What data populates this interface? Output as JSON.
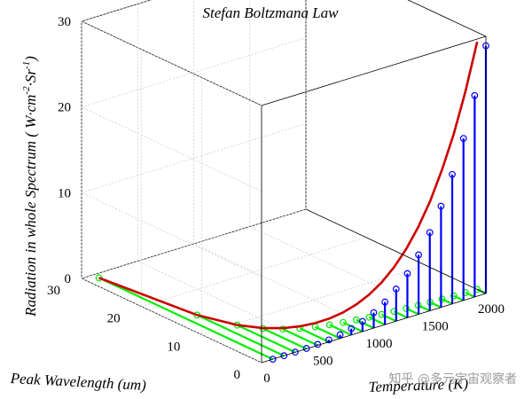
{
  "chart_data": {
    "type": "3d-stem",
    "title": "Stefan Boltzmana Law",
    "xlabel": "Temperature (K)",
    "ylabel": "Peak Wavelength (um)",
    "zlabel_parts": {
      "main": "Radiation in whole Spectrum ( W·cm",
      "sup1": "-2",
      "mid": "·Sr",
      "sup2": "-1",
      "end": ")"
    },
    "xlim": [
      0,
      2000
    ],
    "ylim": [
      0,
      30
    ],
    "zlim": [
      0,
      30
    ],
    "x_ticks": [
      "0",
      "500",
      "1000",
      "1500",
      "2000"
    ],
    "y_ticks": [
      "0",
      "10",
      "20",
      "30"
    ],
    "z_ticks": [
      "0",
      "10",
      "20",
      "30"
    ],
    "grid": true,
    "series": [
      {
        "kind": "stem-radiation",
        "color": "#0000ff",
        "temperature": [
          100,
          200,
          300,
          400,
          500,
          600,
          700,
          800,
          900,
          1000,
          1100,
          1200,
          1300,
          1400,
          1500,
          1600,
          1700,
          1800,
          1900,
          2000
        ],
        "radiation": [
          0.0002,
          0.0029,
          0.0146,
          0.046,
          0.113,
          0.234,
          0.433,
          0.739,
          1.18,
          1.8,
          2.64,
          3.74,
          5.15,
          6.93,
          9.13,
          11.8,
          15.1,
          18.9,
          23.5,
          28.9
        ]
      },
      {
        "kind": "stem-wavelength",
        "color": "#00ee00",
        "temperature": [
          100,
          200,
          300,
          400,
          500,
          600,
          700,
          800,
          900,
          1000,
          1100,
          1200,
          1300,
          1400,
          1500,
          1600,
          1700,
          1800,
          1900,
          2000
        ],
        "wavelength": [
          28.98,
          14.49,
          9.66,
          7.24,
          5.8,
          4.83,
          4.14,
          3.62,
          3.22,
          2.9,
          2.63,
          2.41,
          2.23,
          2.07,
          1.93,
          1.81,
          1.7,
          1.61,
          1.53,
          1.45
        ]
      },
      {
        "kind": "curve",
        "color": "#cc0000",
        "temperature": [
          100,
          200,
          300,
          400,
          500,
          600,
          700,
          800,
          900,
          1000,
          1100,
          1200,
          1300,
          1400,
          1500,
          1600,
          1700,
          1800,
          1900,
          2000
        ],
        "wavelength": [
          28.98,
          14.49,
          9.66,
          7.24,
          5.8,
          4.83,
          4.14,
          3.62,
          3.22,
          2.9,
          2.63,
          2.41,
          2.23,
          2.07,
          1.93,
          1.81,
          1.7,
          1.61,
          1.53,
          1.45
        ],
        "radiation": [
          0.0002,
          0.0029,
          0.0146,
          0.046,
          0.113,
          0.234,
          0.433,
          0.739,
          1.18,
          1.8,
          2.64,
          3.74,
          5.15,
          6.93,
          9.13,
          11.8,
          15.1,
          18.9,
          23.5,
          28.9
        ]
      }
    ]
  },
  "watermark": "知乎 @多元宇宙观察者"
}
